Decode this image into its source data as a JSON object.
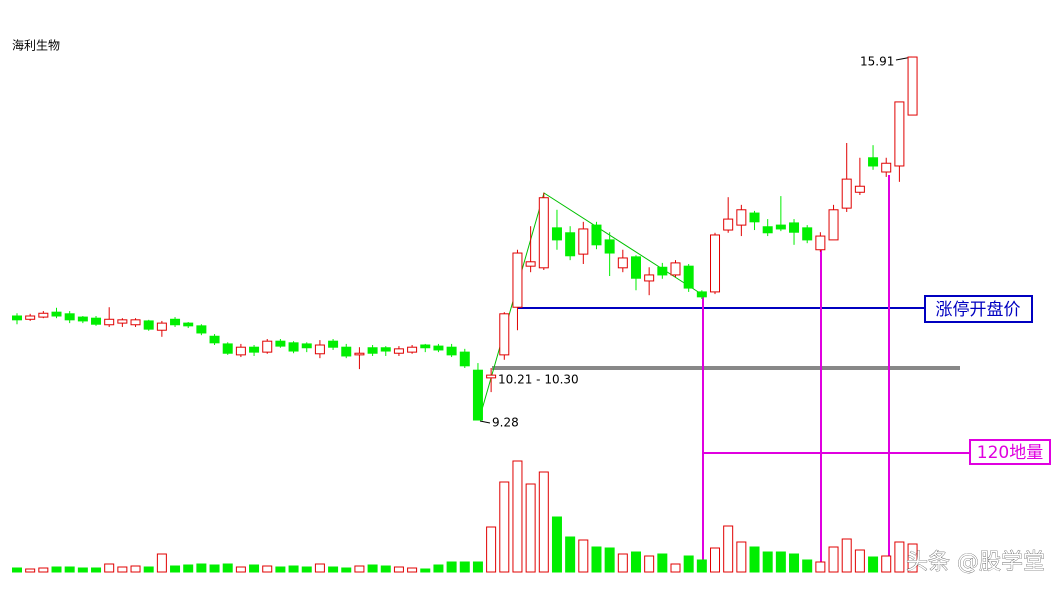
{
  "chart_data": {
    "type": "candlestick",
    "title": "海利生物",
    "open": [
      11.18,
      11.12,
      11.16,
      11.25,
      11.22,
      11.16,
      11.14,
      11.02,
      11.05,
      11.02,
      11.09,
      10.92,
      11.12,
      11.05,
      11.0,
      10.81,
      10.67,
      10.47,
      10.61,
      10.52,
      10.72,
      10.69,
      10.67,
      10.49,
      10.72,
      10.61,
      10.47,
      10.6,
      10.6,
      10.5,
      10.52,
      10.65,
      10.63,
      10.61,
      10.52,
      10.19,
      10.05,
      10.47,
      11.34,
      12.09,
      12.06,
      12.79,
      12.7,
      12.31,
      12.84,
      12.57,
      12.06,
      12.26,
      11.82,
      12.07,
      11.93,
      12.09,
      11.62,
      11.62,
      12.75,
      12.84,
      13.06,
      12.81,
      12.84,
      12.88,
      12.79,
      12.39,
      12.57,
      13.15,
      13.44,
      14.07,
      13.81,
      13.92,
      14.85
    ],
    "high": [
      11.23,
      11.22,
      11.27,
      11.33,
      11.27,
      11.18,
      11.18,
      11.34,
      11.14,
      11.14,
      11.11,
      11.09,
      11.16,
      11.07,
      11.03,
      10.85,
      10.7,
      10.67,
      10.65,
      10.76,
      10.76,
      10.72,
      10.7,
      10.74,
      10.76,
      10.67,
      10.61,
      10.65,
      10.63,
      10.63,
      10.65,
      10.67,
      10.67,
      10.67,
      10.58,
      10.32,
      10.23,
      11.25,
      12.39,
      12.82,
      13.43,
      13.12,
      12.82,
      12.9,
      12.9,
      12.71,
      12.39,
      12.29,
      12.07,
      12.15,
      12.2,
      12.13,
      11.65,
      12.7,
      13.35,
      13.21,
      13.1,
      12.95,
      13.37,
      12.95,
      12.84,
      12.71,
      13.21,
      14.34,
      14.07,
      14.3,
      14.07,
      15.09,
      15.91
    ],
    "low": [
      11.03,
      11.09,
      11.14,
      11.14,
      11.05,
      11.05,
      11.0,
      10.98,
      10.98,
      10.98,
      10.91,
      10.8,
      10.98,
      10.96,
      10.83,
      10.65,
      10.47,
      10.43,
      10.45,
      10.49,
      10.6,
      10.5,
      10.52,
      10.41,
      10.56,
      10.41,
      10.21,
      10.45,
      10.45,
      10.45,
      10.49,
      10.52,
      10.52,
      10.43,
      10.23,
      9.28,
      9.79,
      10.38,
      10.92,
      11.98,
      12.02,
      12.39,
      12.2,
      12.13,
      12.4,
      11.91,
      11.98,
      11.65,
      11.56,
      11.86,
      11.89,
      11.62,
      11.49,
      11.58,
      12.7,
      12.64,
      12.75,
      12.64,
      12.73,
      12.48,
      12.51,
      12.35,
      12.57,
      13.08,
      13.39,
      13.85,
      13.72,
      13.63,
      14.85
    ],
    "close": [
      11.11,
      11.18,
      11.23,
      11.18,
      11.11,
      11.09,
      11.03,
      11.12,
      11.11,
      11.11,
      10.94,
      11.05,
      11.02,
      11.0,
      10.87,
      10.69,
      10.5,
      10.61,
      10.52,
      10.72,
      10.63,
      10.54,
      10.6,
      10.65,
      10.61,
      10.45,
      10.5,
      10.5,
      10.54,
      10.58,
      10.61,
      10.6,
      10.56,
      10.47,
      10.27,
      9.28,
      10.1,
      11.22,
      12.33,
      12.17,
      13.34,
      12.57,
      12.28,
      12.77,
      12.48,
      12.33,
      12.24,
      11.87,
      11.93,
      11.93,
      12.15,
      11.69,
      11.53,
      12.66,
      12.95,
      13.12,
      12.9,
      12.7,
      12.77,
      12.71,
      12.57,
      12.64,
      13.12,
      13.68,
      13.55,
      13.92,
      13.97,
      15.09,
      15.91
    ],
    "volume": [
      4,
      3,
      4,
      5,
      5,
      4,
      4,
      8,
      5,
      6,
      5,
      18,
      6,
      7,
      8,
      7,
      8,
      5,
      7,
      6,
      5,
      6,
      5,
      8,
      5,
      4,
      6,
      7,
      6,
      5,
      4,
      3,
      7,
      10,
      10,
      10,
      45,
      90,
      111,
      88,
      100,
      55,
      35,
      32,
      25,
      24,
      18,
      20,
      16,
      18,
      8,
      16,
      12,
      24,
      46,
      30,
      25,
      20,
      20,
      18,
      12,
      10,
      25,
      33,
      22,
      15,
      16,
      30,
      28
    ],
    "up_color": "#e00000",
    "down_color": "#00ee00",
    "annotations": {
      "range_label": "10.21 - 10.30",
      "limit_open_label": "涨停开盘价",
      "low_volume_label": "120地量"
    },
    "watermark": "头条 @股学堂"
  }
}
